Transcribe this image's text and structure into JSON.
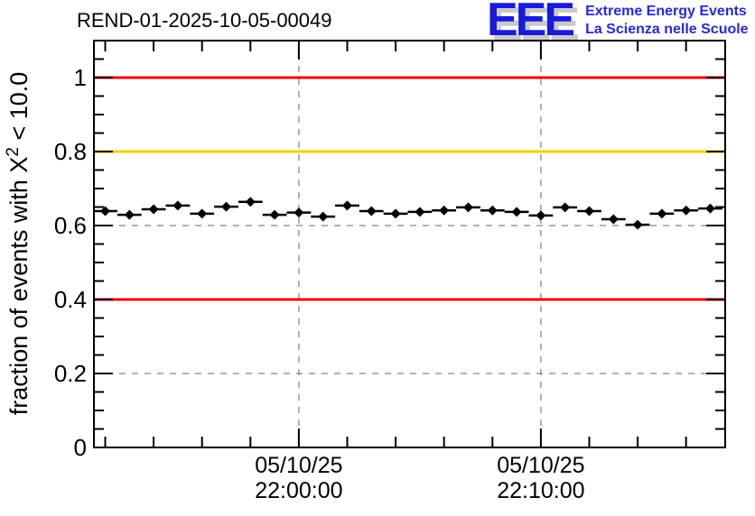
{
  "header": {
    "title": "REND-01-2025-10-05-00049",
    "logo": {
      "acronym": "EEE",
      "line1": "Extreme Energy Events",
      "line2": "La Scienza nelle Scuole"
    }
  },
  "chart_data": {
    "type": "scatter",
    "title": "REND-01-2025-10-05-00049",
    "xlabel": "",
    "ylabel": "fraction of events with X² < 10.0",
    "ylabel_parts": {
      "prefix": "fraction of events with X",
      "sup": "2",
      "suffix": " < 10.0"
    },
    "ylim": [
      0,
      1.1
    ],
    "y_major_ticks": [
      0,
      0.2,
      0.4,
      0.6,
      0.8,
      1
    ],
    "y_minor_step": 0.05,
    "x_time_range": [
      "21:51:32",
      "22:17:37"
    ],
    "x_minor_start": "21:52:00",
    "x_minor_step_minutes": 2,
    "x_major_ticks": [
      {
        "time": "22:00:00",
        "label_date": "05/10/25",
        "label_time": "22:00:00"
      },
      {
        "time": "22:10:00",
        "label_date": "05/10/25",
        "label_time": "22:10:00"
      }
    ],
    "grid": true,
    "legend": null,
    "reference_lines": [
      {
        "y": 1.0,
        "color": "#f00000"
      },
      {
        "y": 0.8,
        "color": "#ffcc00"
      },
      {
        "y": 0.4,
        "color": "#f00000"
      }
    ],
    "series": [
      {
        "name": "fraction of events per minute",
        "marker": "diamond",
        "color": "#000000",
        "bin_width_minutes": 1,
        "points": [
          {
            "time": "21:52:00",
            "value": 0.639
          },
          {
            "time": "21:53:00",
            "value": 0.629
          },
          {
            "time": "21:54:00",
            "value": 0.644
          },
          {
            "time": "21:55:00",
            "value": 0.654
          },
          {
            "time": "21:56:00",
            "value": 0.632
          },
          {
            "time": "21:57:00",
            "value": 0.651
          },
          {
            "time": "21:58:00",
            "value": 0.664
          },
          {
            "time": "21:59:00",
            "value": 0.629
          },
          {
            "time": "22:00:00",
            "value": 0.635
          },
          {
            "time": "22:01:00",
            "value": 0.624
          },
          {
            "time": "22:02:00",
            "value": 0.654
          },
          {
            "time": "22:03:00",
            "value": 0.639
          },
          {
            "time": "22:04:00",
            "value": 0.632
          },
          {
            "time": "22:05:00",
            "value": 0.637
          },
          {
            "time": "22:06:00",
            "value": 0.641
          },
          {
            "time": "22:07:00",
            "value": 0.649
          },
          {
            "time": "22:08:00",
            "value": 0.641
          },
          {
            "time": "22:09:00",
            "value": 0.637
          },
          {
            "time": "22:10:00",
            "value": 0.627
          },
          {
            "time": "22:11:00",
            "value": 0.649
          },
          {
            "time": "22:12:00",
            "value": 0.639
          },
          {
            "time": "22:13:00",
            "value": 0.617
          },
          {
            "time": "22:14:00",
            "value": 0.602
          },
          {
            "time": "22:15:00",
            "value": 0.632
          },
          {
            "time": "22:16:00",
            "value": 0.641
          },
          {
            "time": "22:17:00",
            "value": 0.646
          }
        ]
      }
    ],
    "colors": {
      "axis": "#000000",
      "grid": "#999999",
      "upper_limit": "#f00000",
      "warning": "#ffcc00",
      "data": "#000000",
      "logo_blue": "#1a1add"
    }
  }
}
